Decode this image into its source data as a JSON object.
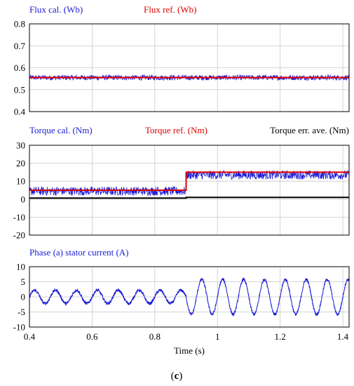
{
  "figure": {
    "caption_open": "(",
    "caption_letter": "c",
    "caption_close": ")"
  },
  "chart_data": [
    {
      "type": "line",
      "panel": "flux",
      "legend": [
        {
          "text": "Flux cal. (Wb)",
          "color": "#1a1ad6"
        },
        {
          "text": "Flux ref. (Wb)",
          "color": "#e00000"
        }
      ],
      "xlim": [
        0.4,
        1.42
      ],
      "ylim": [
        0.4,
        0.8
      ],
      "yticks": [
        "0.8",
        "0.7",
        "0.6",
        "0.5",
        "0.4"
      ],
      "ytick_values": [
        0.8,
        0.7,
        0.6,
        0.5,
        0.4
      ],
      "grid": true,
      "series": [
        {
          "name": "Flux cal. (Wb)",
          "color": "#1a1ad6",
          "style": "noisy band",
          "x": [
            0.4,
            1.42
          ],
          "y": [
            0.555,
            0.555
          ],
          "noise_amplitude": 0.012
        },
        {
          "name": "Flux ref. (Wb)",
          "color": "#e00000",
          "x": [
            0.4,
            1.42
          ],
          "y": [
            0.555,
            0.555
          ]
        }
      ]
    },
    {
      "type": "line",
      "panel": "torque",
      "legend": [
        {
          "text": "Torque cal. (Nm)",
          "color": "#1a1ad6"
        },
        {
          "text": "Torque ref. (Nm)",
          "color": "#e00000"
        },
        {
          "text": "Torque err. ave. (Nm)",
          "color": "#000000"
        }
      ],
      "xlim": [
        0.4,
        1.42
      ],
      "ylim": [
        -20,
        30
      ],
      "yticks": [
        "30",
        "20",
        "10",
        "0",
        "-10",
        "-20"
      ],
      "ytick_values": [
        30,
        20,
        10,
        0,
        -10,
        -20
      ],
      "grid": true,
      "series": [
        {
          "name": "Torque cal. (Nm)",
          "color": "#1a1ad6",
          "style": "noisy band",
          "x": [
            0.4,
            0.9,
            0.9,
            1.42
          ],
          "y": [
            4.5,
            4.5,
            13.5,
            13.5
          ],
          "noise_amplitude": 2.5
        },
        {
          "name": "Torque ref. (Nm)",
          "color": "#e00000",
          "x": [
            0.4,
            0.9,
            0.9,
            1.42
          ],
          "y": [
            5,
            5,
            15,
            15
          ]
        },
        {
          "name": "Torque err. ave. (Nm)",
          "color": "#000000",
          "x": [
            0.4,
            0.9,
            0.9,
            1.42
          ],
          "y": [
            0.6,
            0.6,
            1.0,
            1.0
          ]
        }
      ]
    },
    {
      "type": "line",
      "panel": "current",
      "legend": [
        {
          "text": "Phase (a) stator current (A)",
          "color": "#1a1ad6"
        }
      ],
      "xlim": [
        0.4,
        1.42
      ],
      "ylim": [
        -10,
        10
      ],
      "yticks": [
        "10",
        "5",
        "0",
        "-5",
        "-10"
      ],
      "ytick_values": [
        10,
        5,
        0,
        -5,
        -10
      ],
      "xticks": [
        "0.4",
        "0.6",
        "0.8",
        "1",
        "1.2",
        "1.4"
      ],
      "xtick_values": [
        0.4,
        0.6,
        0.8,
        1.0,
        1.2,
        1.4
      ],
      "xlabel": "Time (s)",
      "grid": true,
      "series": [
        {
          "name": "Phase (a) stator current (A)",
          "color": "#1a1ad6",
          "style": "noisy sinusoid",
          "frequency_hz": 15,
          "segments": [
            {
              "x_start": 0.4,
              "x_end": 0.9,
              "amplitude": 2.2
            },
            {
              "x_start": 0.9,
              "x_end": 1.42,
              "amplitude": 5.8
            }
          ]
        }
      ]
    }
  ]
}
